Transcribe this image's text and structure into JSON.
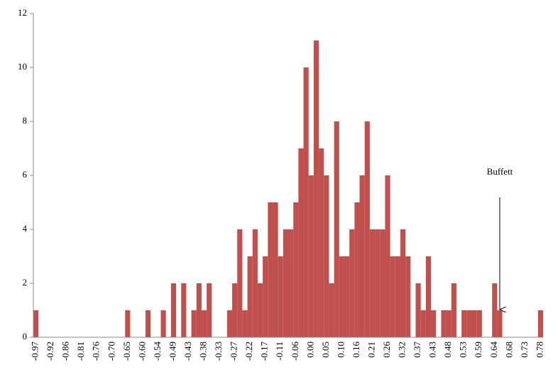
{
  "chart_data": {
    "type": "bar",
    "color": "#c0504d",
    "annotation": "Buffett",
    "annotation_index": 91,
    "categories": [
      "-0.97",
      null,
      null,
      "-0.92",
      null,
      null,
      "-0.86",
      null,
      null,
      "-0.81",
      null,
      null,
      "-0.76",
      null,
      null,
      "-0.70",
      null,
      null,
      "-0.65",
      null,
      null,
      "-0.60",
      null,
      null,
      "-0.54",
      null,
      null,
      "-0.49",
      null,
      null,
      "-0.43",
      null,
      null,
      "-0.38",
      null,
      null,
      "-0.33",
      null,
      null,
      "-0.27",
      null,
      null,
      "-0.22",
      null,
      null,
      "-0.17",
      null,
      null,
      "-0.11",
      null,
      null,
      "-0.06",
      null,
      null,
      "0.00",
      null,
      null,
      "0.05",
      null,
      null,
      "0.10",
      null,
      null,
      "0.16",
      null,
      null,
      "0.21",
      null,
      null,
      "0.26",
      null,
      null,
      "0.32",
      null,
      null,
      "0.37",
      null,
      null,
      "0.43",
      null,
      null,
      "0.48",
      null,
      null,
      "0.53",
      null,
      null,
      "0.59",
      null,
      null,
      "0.64",
      null,
      null,
      "0.68",
      null,
      null,
      "0.73",
      null,
      null,
      "0.78"
    ],
    "values": [
      1,
      0,
      0,
      0,
      0,
      0,
      0,
      0,
      0,
      0,
      0,
      0,
      0,
      0,
      0,
      0,
      0,
      0,
      1,
      0,
      0,
      0,
      1,
      0,
      0,
      1,
      0,
      2,
      0,
      2,
      0,
      1,
      2,
      1,
      2,
      0,
      0,
      0,
      1,
      2,
      4,
      1,
      3,
      4,
      2,
      3,
      5,
      5,
      3,
      4,
      4,
      5,
      7,
      10,
      6,
      11,
      7,
      6,
      2,
      8,
      3,
      3,
      4,
      5,
      6,
      8,
      4,
      4,
      4,
      6,
      3,
      3,
      4,
      3,
      0,
      2,
      1,
      3,
      1,
      0,
      1,
      1,
      2,
      0,
      1,
      1,
      1,
      1,
      0,
      0,
      2,
      1,
      0,
      0,
      0,
      0,
      0,
      0,
      0,
      1
    ],
    "ylim": [
      0,
      12
    ],
    "yticks": [
      0,
      2,
      4,
      6,
      8,
      10,
      12
    ]
  }
}
